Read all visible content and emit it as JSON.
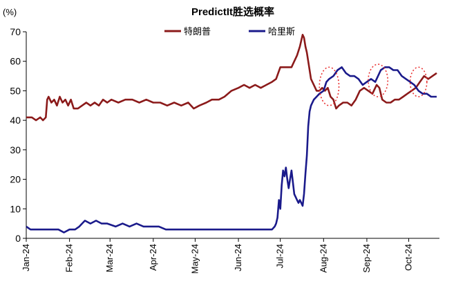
{
  "chart_data": {
    "type": "line",
    "title": "PredictIt胜选概率",
    "unit_label": "(%)",
    "ylim": [
      0,
      70
    ],
    "yticks": [
      0,
      10,
      20,
      30,
      40,
      50,
      60,
      70
    ],
    "xlim": [
      "2024-01-01",
      "2024-10-23"
    ],
    "xticks": [
      {
        "date": "2024-01-01",
        "label": "Jan-24"
      },
      {
        "date": "2024-02-01",
        "label": "Feb-24"
      },
      {
        "date": "2024-03-01",
        "label": "Mar-24"
      },
      {
        "date": "2024-04-01",
        "label": "Apr-24"
      },
      {
        "date": "2024-05-01",
        "label": "May-24"
      },
      {
        "date": "2024-06-01",
        "label": "Jun-24"
      },
      {
        "date": "2024-07-01",
        "label": "Jul-24"
      },
      {
        "date": "2024-08-01",
        "label": "Aug-24"
      },
      {
        "date": "2024-09-01",
        "label": "Sep-24"
      },
      {
        "date": "2024-10-01",
        "label": "Oct-24"
      }
    ],
    "legend_placement": "top-center",
    "grid": false,
    "series": [
      {
        "name": "特朗普",
        "color": "#8b1a1a",
        "points": [
          [
            "2024-01-01",
            41
          ],
          [
            "2024-01-05",
            41
          ],
          [
            "2024-01-08",
            40
          ],
          [
            "2024-01-11",
            41
          ],
          [
            "2024-01-13",
            40
          ],
          [
            "2024-01-15",
            41
          ],
          [
            "2024-01-16",
            47
          ],
          [
            "2024-01-17",
            48
          ],
          [
            "2024-01-19",
            46
          ],
          [
            "2024-01-21",
            47
          ],
          [
            "2024-01-23",
            45
          ],
          [
            "2024-01-25",
            48
          ],
          [
            "2024-01-27",
            46
          ],
          [
            "2024-01-29",
            47
          ],
          [
            "2024-01-31",
            45
          ],
          [
            "2024-02-02",
            47
          ],
          [
            "2024-02-04",
            44
          ],
          [
            "2024-02-07",
            44
          ],
          [
            "2024-02-10",
            45
          ],
          [
            "2024-02-13",
            46
          ],
          [
            "2024-02-16",
            45
          ],
          [
            "2024-02-19",
            46
          ],
          [
            "2024-02-22",
            45
          ],
          [
            "2024-02-25",
            47
          ],
          [
            "2024-02-28",
            46
          ],
          [
            "2024-03-02",
            47
          ],
          [
            "2024-03-07",
            46
          ],
          [
            "2024-03-12",
            47
          ],
          [
            "2024-03-17",
            47
          ],
          [
            "2024-03-22",
            46
          ],
          [
            "2024-03-27",
            47
          ],
          [
            "2024-04-01",
            46
          ],
          [
            "2024-04-06",
            46
          ],
          [
            "2024-04-11",
            45
          ],
          [
            "2024-04-16",
            46
          ],
          [
            "2024-04-21",
            45
          ],
          [
            "2024-04-26",
            46
          ],
          [
            "2024-04-30",
            44
          ],
          [
            "2024-05-04",
            45
          ],
          [
            "2024-05-09",
            46
          ],
          [
            "2024-05-13",
            47
          ],
          [
            "2024-05-18",
            47
          ],
          [
            "2024-05-22",
            48
          ],
          [
            "2024-05-27",
            50
          ],
          [
            "2024-06-01",
            51
          ],
          [
            "2024-06-05",
            52
          ],
          [
            "2024-06-09",
            51
          ],
          [
            "2024-06-13",
            52
          ],
          [
            "2024-06-17",
            51
          ],
          [
            "2024-06-21",
            52
          ],
          [
            "2024-06-25",
            53
          ],
          [
            "2024-06-28",
            54
          ],
          [
            "2024-07-01",
            58
          ],
          [
            "2024-07-05",
            58
          ],
          [
            "2024-07-09",
            58
          ],
          [
            "2024-07-11",
            60
          ],
          [
            "2024-07-13",
            62
          ],
          [
            "2024-07-15",
            65
          ],
          [
            "2024-07-16",
            67
          ],
          [
            "2024-07-17",
            69
          ],
          [
            "2024-07-18",
            68
          ],
          [
            "2024-07-19",
            65
          ],
          [
            "2024-07-20",
            63
          ],
          [
            "2024-07-21",
            60
          ],
          [
            "2024-07-22",
            57
          ],
          [
            "2024-07-23",
            54
          ],
          [
            "2024-07-25",
            52
          ],
          [
            "2024-07-27",
            50
          ],
          [
            "2024-07-29",
            50
          ],
          [
            "2024-07-31",
            51
          ],
          [
            "2024-08-02",
            50
          ],
          [
            "2024-08-04",
            51
          ],
          [
            "2024-08-06",
            48
          ],
          [
            "2024-08-08",
            47
          ],
          [
            "2024-08-10",
            44
          ],
          [
            "2024-08-12",
            45
          ],
          [
            "2024-08-15",
            46
          ],
          [
            "2024-08-18",
            46
          ],
          [
            "2024-08-21",
            45
          ],
          [
            "2024-08-24",
            47
          ],
          [
            "2024-08-27",
            50
          ],
          [
            "2024-08-30",
            51
          ],
          [
            "2024-09-02",
            50
          ],
          [
            "2024-09-05",
            49
          ],
          [
            "2024-09-08",
            52
          ],
          [
            "2024-09-10",
            51
          ],
          [
            "2024-09-12",
            47
          ],
          [
            "2024-09-15",
            46
          ],
          [
            "2024-09-18",
            46
          ],
          [
            "2024-09-21",
            47
          ],
          [
            "2024-09-24",
            47
          ],
          [
            "2024-09-27",
            48
          ],
          [
            "2024-09-30",
            49
          ],
          [
            "2024-10-03",
            50
          ],
          [
            "2024-10-06",
            51
          ],
          [
            "2024-10-09",
            53
          ],
          [
            "2024-10-12",
            55
          ],
          [
            "2024-10-15",
            54
          ],
          [
            "2024-10-18",
            55
          ],
          [
            "2024-10-21",
            56
          ]
        ]
      },
      {
        "name": "哈里斯",
        "color": "#1a1a8b",
        "points": [
          [
            "2024-01-01",
            4
          ],
          [
            "2024-01-04",
            3
          ],
          [
            "2024-01-08",
            3
          ],
          [
            "2024-01-12",
            3
          ],
          [
            "2024-01-16",
            3
          ],
          [
            "2024-01-20",
            3
          ],
          [
            "2024-01-24",
            3
          ],
          [
            "2024-01-28",
            2
          ],
          [
            "2024-02-01",
            3
          ],
          [
            "2024-02-05",
            3
          ],
          [
            "2024-02-08",
            4
          ],
          [
            "2024-02-10",
            5
          ],
          [
            "2024-02-12",
            6
          ],
          [
            "2024-02-16",
            5
          ],
          [
            "2024-02-20",
            6
          ],
          [
            "2024-02-24",
            5
          ],
          [
            "2024-02-28",
            5
          ],
          [
            "2024-03-05",
            4
          ],
          [
            "2024-03-10",
            5
          ],
          [
            "2024-03-15",
            4
          ],
          [
            "2024-03-20",
            5
          ],
          [
            "2024-03-25",
            4
          ],
          [
            "2024-03-30",
            4
          ],
          [
            "2024-04-05",
            4
          ],
          [
            "2024-04-10",
            3
          ],
          [
            "2024-04-15",
            3
          ],
          [
            "2024-04-20",
            3
          ],
          [
            "2024-04-25",
            3
          ],
          [
            "2024-04-30",
            3
          ],
          [
            "2024-05-05",
            3
          ],
          [
            "2024-05-10",
            3
          ],
          [
            "2024-05-15",
            3
          ],
          [
            "2024-05-20",
            3
          ],
          [
            "2024-05-25",
            3
          ],
          [
            "2024-05-30",
            3
          ],
          [
            "2024-06-05",
            3
          ],
          [
            "2024-06-10",
            3
          ],
          [
            "2024-06-15",
            3
          ],
          [
            "2024-06-20",
            3
          ],
          [
            "2024-06-25",
            3
          ],
          [
            "2024-06-27",
            4
          ],
          [
            "2024-06-28",
            5
          ],
          [
            "2024-06-29",
            7
          ],
          [
            "2024-06-30",
            13
          ],
          [
            "2024-07-01",
            10
          ],
          [
            "2024-07-02",
            18
          ],
          [
            "2024-07-03",
            23
          ],
          [
            "2024-07-04",
            21
          ],
          [
            "2024-07-05",
            24
          ],
          [
            "2024-07-06",
            20
          ],
          [
            "2024-07-07",
            17
          ],
          [
            "2024-07-08",
            20
          ],
          [
            "2024-07-09",
            23
          ],
          [
            "2024-07-10",
            19
          ],
          [
            "2024-07-11",
            15
          ],
          [
            "2024-07-12",
            14
          ],
          [
            "2024-07-13",
            13
          ],
          [
            "2024-07-14",
            12
          ],
          [
            "2024-07-15",
            13
          ],
          [
            "2024-07-16",
            12
          ],
          [
            "2024-07-17",
            11
          ],
          [
            "2024-07-18",
            15
          ],
          [
            "2024-07-19",
            22
          ],
          [
            "2024-07-20",
            28
          ],
          [
            "2024-07-21",
            38
          ],
          [
            "2024-07-22",
            43
          ],
          [
            "2024-07-23",
            45
          ],
          [
            "2024-07-25",
            47
          ],
          [
            "2024-07-27",
            48
          ],
          [
            "2024-07-29",
            49
          ],
          [
            "2024-08-01",
            50
          ],
          [
            "2024-08-03",
            53
          ],
          [
            "2024-08-05",
            54
          ],
          [
            "2024-08-08",
            55
          ],
          [
            "2024-08-11",
            57
          ],
          [
            "2024-08-14",
            58
          ],
          [
            "2024-08-17",
            56
          ],
          [
            "2024-08-20",
            55
          ],
          [
            "2024-08-23",
            55
          ],
          [
            "2024-08-26",
            54
          ],
          [
            "2024-08-29",
            52
          ],
          [
            "2024-09-01",
            53
          ],
          [
            "2024-09-04",
            54
          ],
          [
            "2024-09-07",
            53
          ],
          [
            "2024-09-09",
            55
          ],
          [
            "2024-09-11",
            57
          ],
          [
            "2024-09-14",
            58
          ],
          [
            "2024-09-17",
            58
          ],
          [
            "2024-09-20",
            57
          ],
          [
            "2024-09-23",
            57
          ],
          [
            "2024-09-26",
            55
          ],
          [
            "2024-09-29",
            54
          ],
          [
            "2024-10-02",
            53
          ],
          [
            "2024-10-05",
            52
          ],
          [
            "2024-10-08",
            50
          ],
          [
            "2024-10-11",
            49
          ],
          [
            "2024-10-14",
            49
          ],
          [
            "2024-10-17",
            48
          ],
          [
            "2024-10-21",
            48
          ]
        ]
      }
    ],
    "annotations": [
      {
        "type": "dashed-ellipse",
        "center_date": "2024-08-05",
        "center_value": 51.5,
        "half_width_days": 7,
        "half_height_value": 6.5,
        "color": "#e83030"
      },
      {
        "type": "dashed-ellipse",
        "center_date": "2024-09-09",
        "center_value": 53.5,
        "half_width_days": 7,
        "half_height_value": 5.5,
        "color": "#e83030"
      },
      {
        "type": "dashed-ellipse",
        "center_date": "2024-10-08",
        "center_value": 53.0,
        "half_width_days": 6,
        "half_height_value": 5.0,
        "color": "#e83030"
      }
    ]
  }
}
